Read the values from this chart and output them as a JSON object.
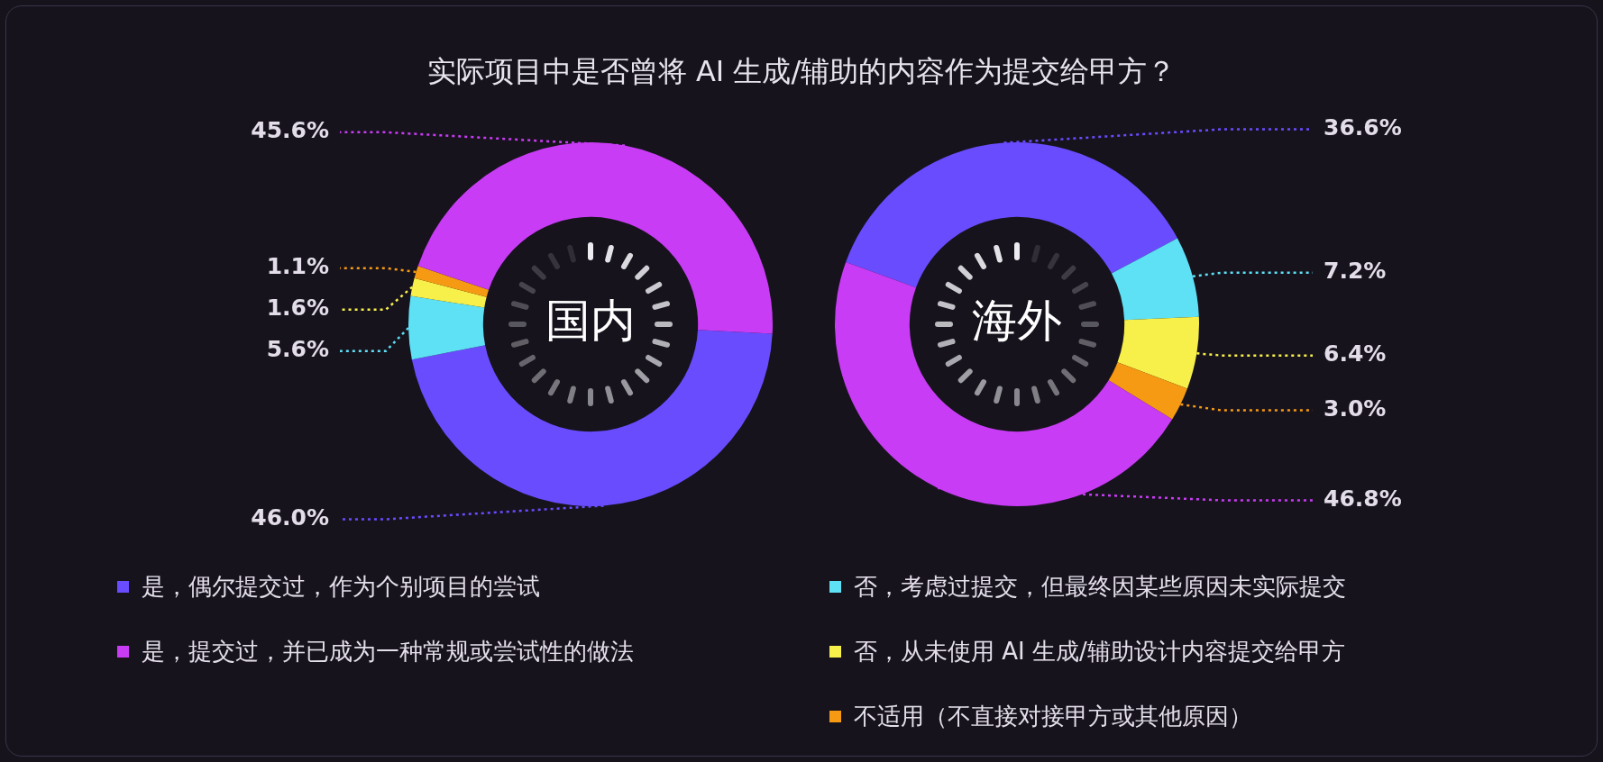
{
  "chart_data": [
    {
      "type": "donut",
      "title": "实际项目中是否曾将 AI 生成/辅助的内容作为提交给甲方？",
      "subtitle": "国内",
      "categories": [
        "是，偶尔提交过，作为个别项目的尝试",
        "否，考虑过提交，但最终因某些原因未实际提交",
        "否，从未使用 AI 生成/辅助设计内容提交给甲方",
        "不适用（不直接对接甲方或其他原因）",
        "是，提交过，并已成为一种常规或尝试性的做法"
      ],
      "values": [
        46.0,
        5.6,
        1.6,
        1.1,
        45.6
      ],
      "colors": [
        "#6a4cff",
        "#5ee0f5",
        "#f7f04a",
        "#f59a12",
        "#c93cf5"
      ],
      "value_labels": [
        "46.0%",
        "5.6%",
        "1.6%",
        "1.1%",
        "45.6%"
      ],
      "legend": "bottom"
    },
    {
      "type": "donut",
      "subtitle": "海外",
      "categories": [
        null,
        null,
        null,
        null,
        null
      ],
      "values": [
        36.6,
        7.2,
        6.4,
        3.0,
        46.8
      ],
      "colors": [
        "#6a4cff",
        "#5ee0f5",
        "#f7f04a",
        "#f59a12",
        "#c93cf5"
      ],
      "value_labels": [
        "36.6%",
        "7.2%",
        "6.4%",
        "3.0%",
        "46.8%"
      ]
    }
  ]
}
